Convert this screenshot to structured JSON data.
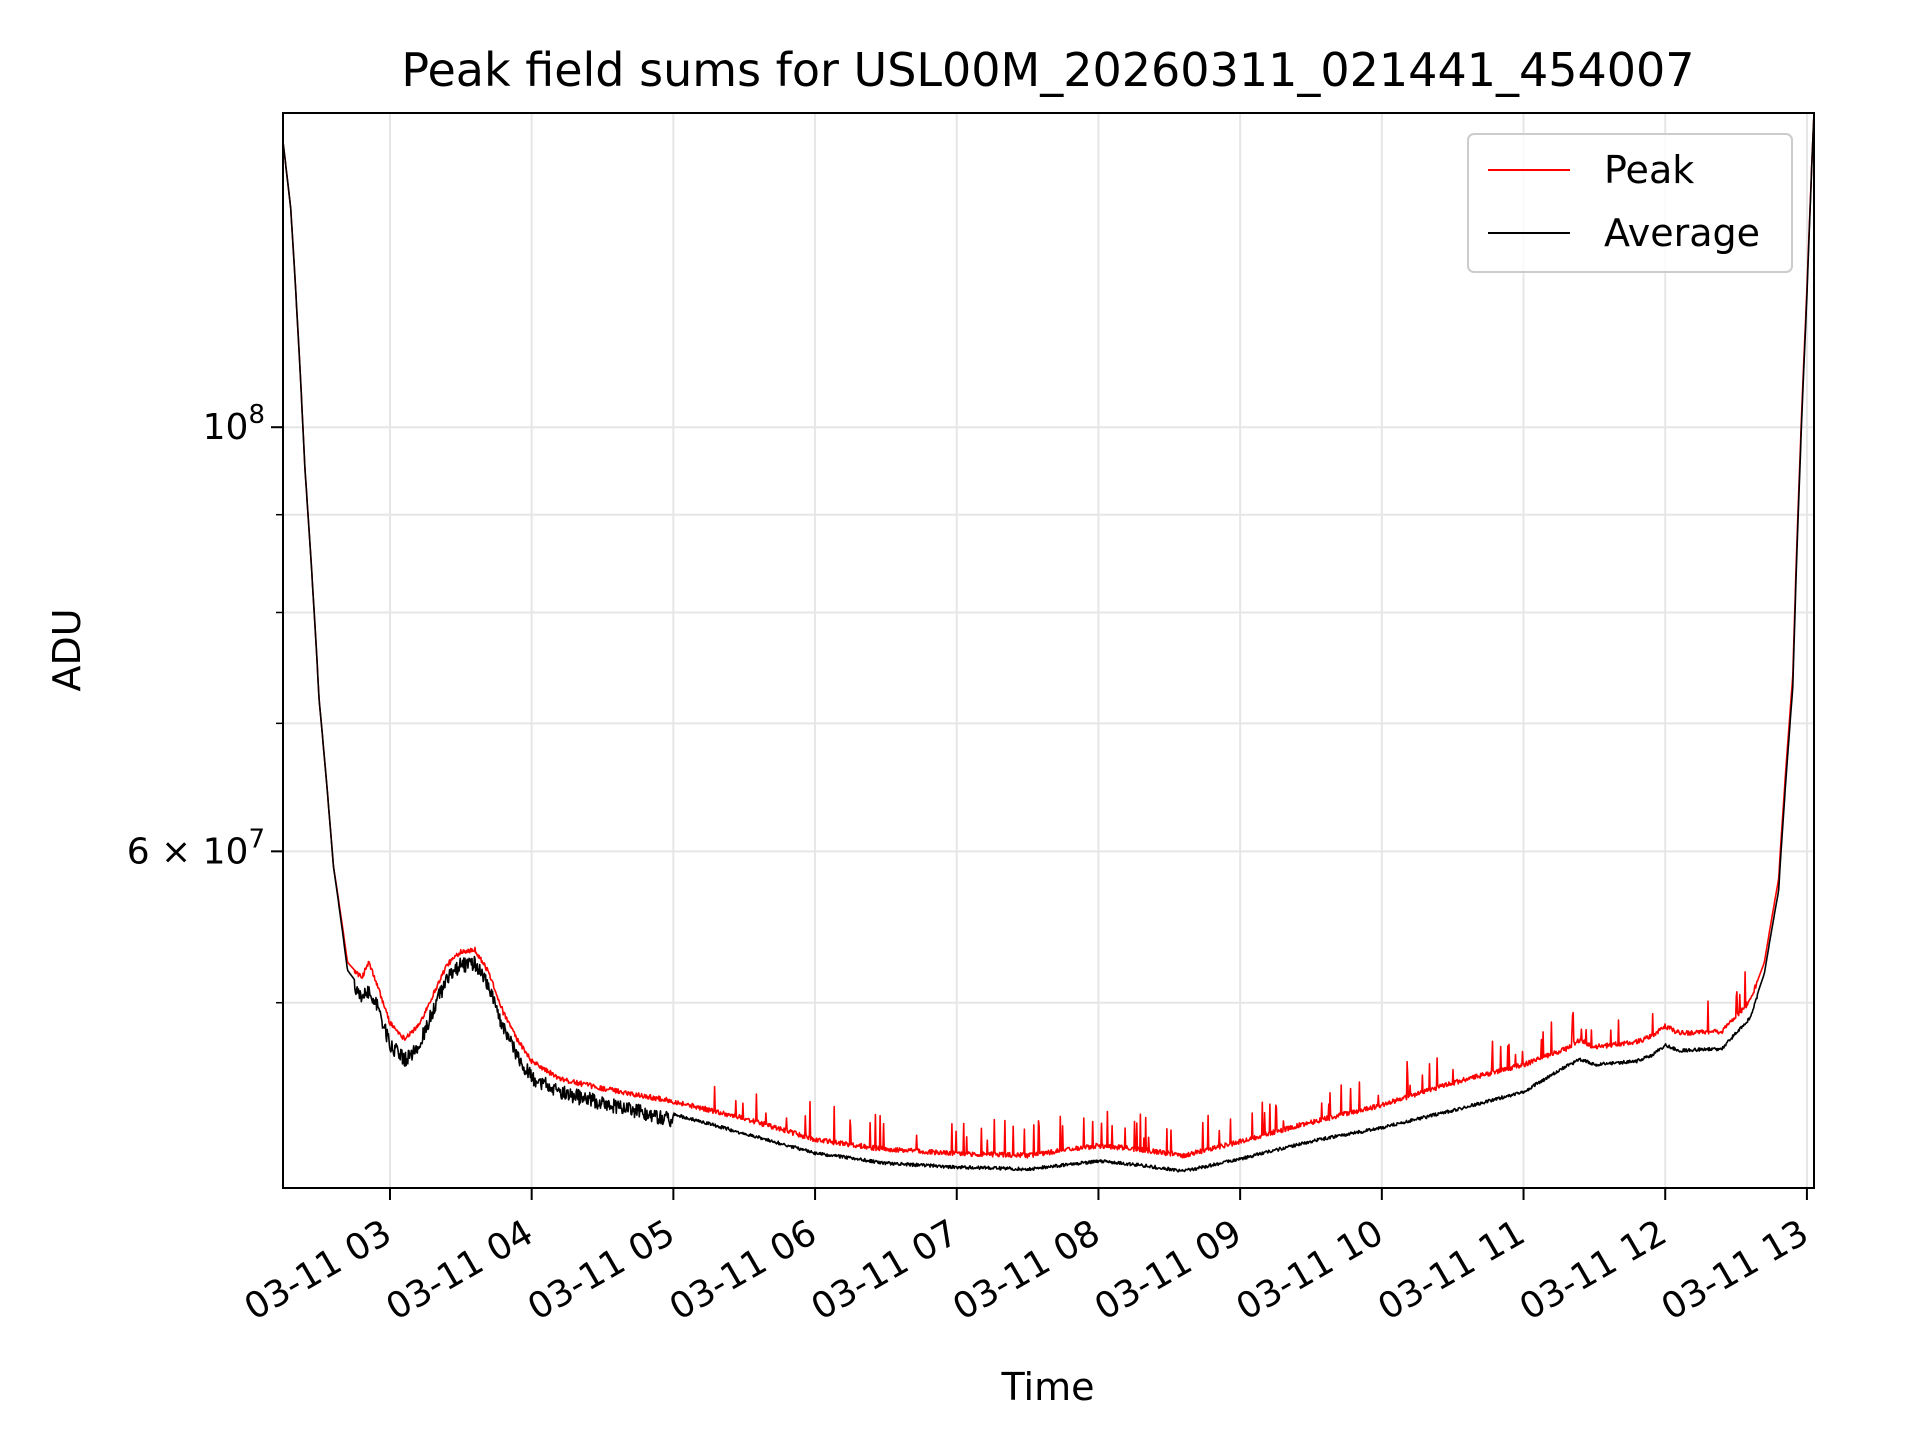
{
  "chart_data": {
    "type": "line",
    "title": "Peak field sums for USL00M_20260311_021441_454007",
    "xlabel": "Time",
    "ylabel": "ADU",
    "yscale": "log",
    "grid": true,
    "legend_position": "top-right",
    "xlim": [
      2.245,
      13.05
    ],
    "ylim": [
      40000000,
      146000000
    ],
    "x_ticks": [
      {
        "value": 3,
        "label": "03-11 03"
      },
      {
        "value": 4,
        "label": "03-11 04"
      },
      {
        "value": 5,
        "label": "03-11 05"
      },
      {
        "value": 6,
        "label": "03-11 06"
      },
      {
        "value": 7,
        "label": "03-11 07"
      },
      {
        "value": 8,
        "label": "03-11 08"
      },
      {
        "value": 9,
        "label": "03-11 09"
      },
      {
        "value": 10,
        "label": "03-11 10"
      },
      {
        "value": 11,
        "label": "03-11 11"
      },
      {
        "value": 12,
        "label": "03-11 12"
      },
      {
        "value": 13,
        "label": "03-11 13"
      }
    ],
    "y_major_ticks": [
      {
        "value": 100000000,
        "base": "10",
        "exp": "8",
        "mant": ""
      },
      {
        "value": 60000000,
        "base": "10",
        "exp": "7",
        "mant": "6 × "
      }
    ],
    "y_minor_ticks": [
      50000000,
      70000000,
      80000000,
      90000000
    ],
    "x_hours": [
      2.245,
      2.3,
      2.4,
      2.5,
      2.6,
      2.7,
      2.8,
      2.85,
      2.9,
      3.0,
      3.1,
      3.2,
      3.3,
      3.4,
      3.5,
      3.6,
      3.7,
      3.8,
      3.9,
      4.0,
      4.2,
      4.5,
      5.0,
      5.5,
      6.0,
      6.5,
      7.0,
      7.5,
      8.0,
      8.3,
      8.6,
      9.0,
      9.5,
      10.0,
      10.5,
      11.0,
      11.3,
      11.4,
      11.5,
      11.8,
      11.9,
      12.0,
      12.1,
      12.4,
      12.6,
      12.7,
      12.8,
      12.9,
      13.0,
      13.05
    ],
    "series": [
      {
        "name": "Peak",
        "color": "#ff0000",
        "values": [
          141000000,
          130000000,
          95000000,
          72000000,
          59000000,
          52500000,
          51500000,
          52500000,
          51300000,
          48800000,
          47900000,
          48600000,
          50400000,
          52300000,
          53200000,
          53300000,
          51800000,
          49400000,
          47800000,
          46600000,
          45600000,
          45100000,
          44400000,
          43500000,
          42400000,
          41900000,
          41700000,
          41600000,
          42100000,
          41900000,
          41600000,
          42300000,
          43300000,
          44200000,
          45400000,
          46400000,
          47300000,
          47800000,
          47400000,
          47700000,
          48000000,
          48600000,
          48200000,
          48300000,
          50100000,
          52500000,
          58000000,
          74000000,
          118000000,
          146000000
        ]
      },
      {
        "name": "Average",
        "color": "#000000",
        "values": [
          141000000,
          130000000,
          95000000,
          72000000,
          59000000,
          52000000,
          50800000,
          51200000,
          50500000,
          48000000,
          47100000,
          47800000,
          49900000,
          51900000,
          52800000,
          52900000,
          51400000,
          48900000,
          47300000,
          46100000,
          45300000,
          44700000,
          43800000,
          42800000,
          41800000,
          41300000,
          41100000,
          41000000,
          41400000,
          41200000,
          40900000,
          41500000,
          42400000,
          43100000,
          44000000,
          45000000,
          46400000,
          46800000,
          46500000,
          46700000,
          47000000,
          47600000,
          47300000,
          47400000,
          49200000,
          51800000,
          57200000,
          73000000,
          117000000,
          146000000
        ]
      }
    ]
  }
}
